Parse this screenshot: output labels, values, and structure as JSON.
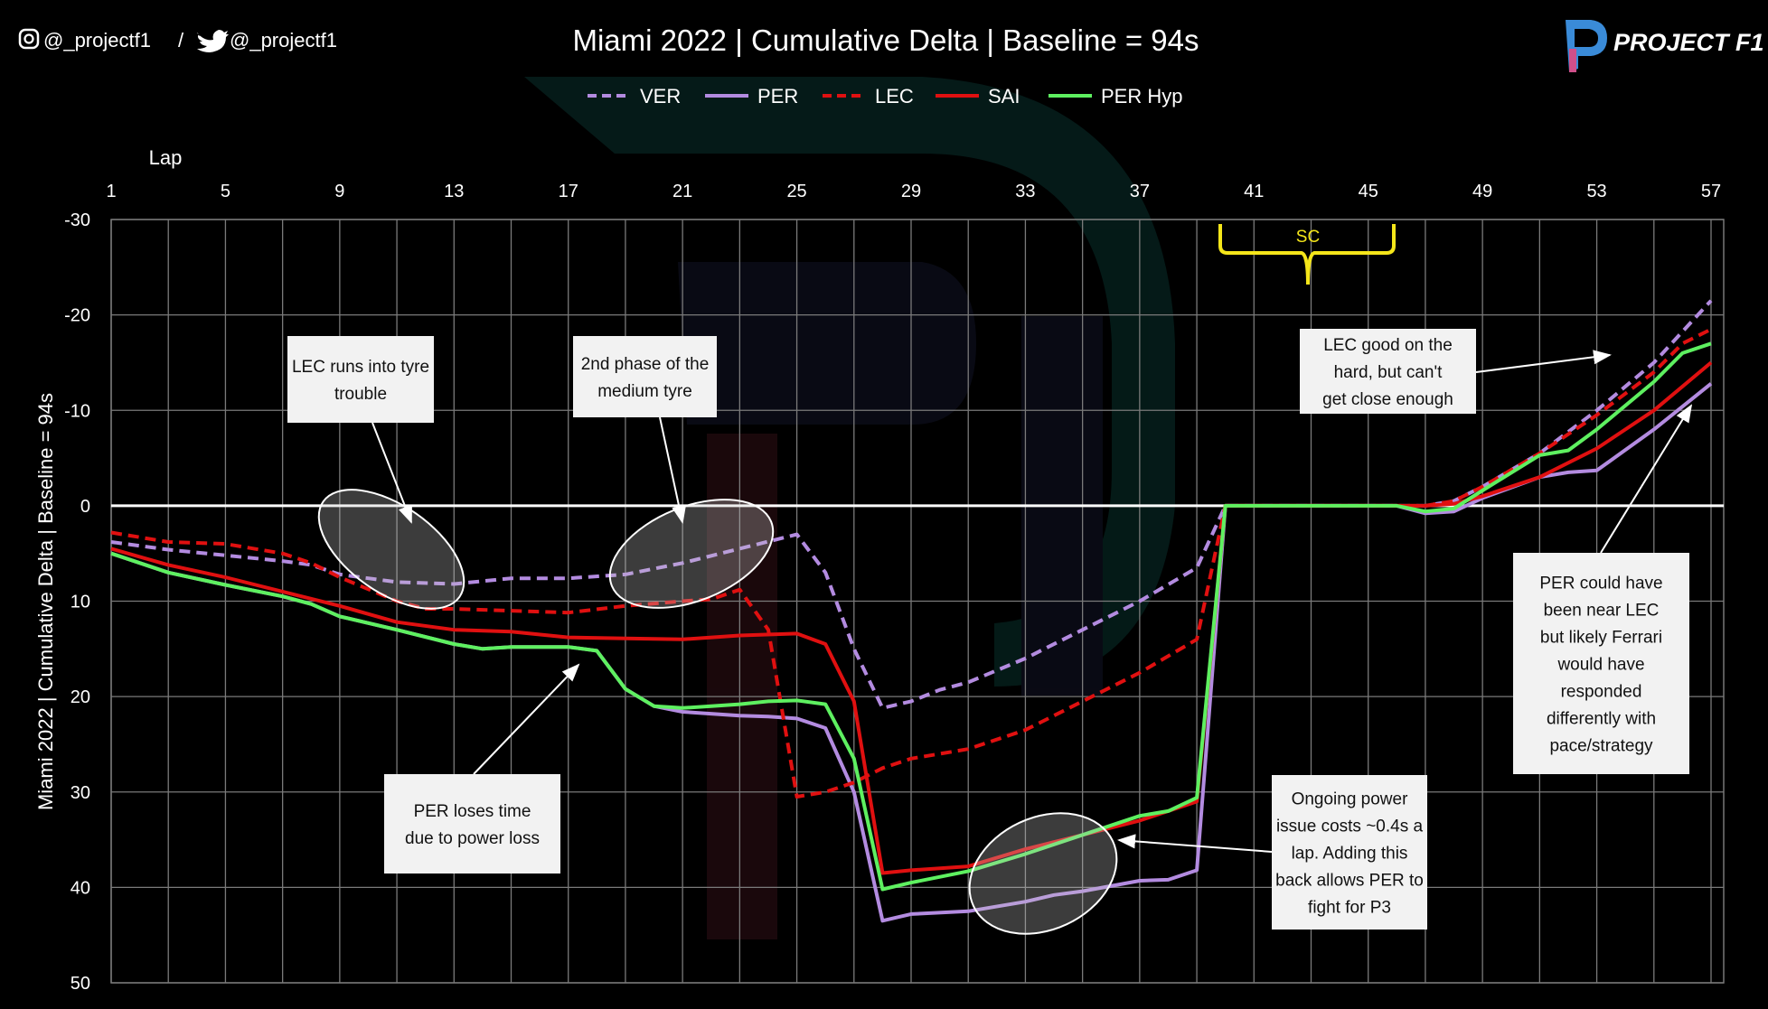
{
  "header": {
    "social": "@_projectf1 / @_projectf1",
    "instagram_handle": "@_projectf1",
    "twitter_handle": "@_projectf1",
    "logo_text": "PROJECT F1",
    "icons": [
      "instagram-icon",
      "twitter-icon",
      "project-f1-logo"
    ]
  },
  "chart_data": {
    "type": "line",
    "title": "Miami 2022 | Cumulative Delta | Baseline = 94s",
    "xlabel": "Lap",
    "ylabel": "Miami 2022 | Cumulative Delta | Baseline = 94s",
    "xlim": [
      1,
      57
    ],
    "ylim": [
      50,
      -30
    ],
    "y_inverted": true,
    "xticks": [
      1,
      5,
      9,
      13,
      17,
      21,
      25,
      29,
      33,
      37,
      41,
      45,
      49,
      53,
      57
    ],
    "yticks": [
      -30,
      -20,
      -10,
      0,
      10,
      20,
      30,
      40,
      50
    ],
    "grid": true,
    "legend_placement": "top",
    "series": [
      {
        "name": "VER",
        "color": "#b38be0",
        "dash": true,
        "x": [
          1,
          3,
          5,
          7,
          8,
          9,
          10,
          11,
          13,
          15,
          17,
          19,
          21,
          23,
          25,
          26,
          27,
          28,
          29,
          30,
          31,
          33,
          35,
          37,
          39,
          40,
          46,
          47,
          48,
          49,
          51,
          53,
          55,
          57
        ],
        "y": [
          3.8,
          4.6,
          5.2,
          5.8,
          6.2,
          7.2,
          7.6,
          8,
          8.2,
          7.6,
          7.6,
          7.2,
          6,
          4.5,
          3,
          7,
          15,
          21.2,
          20.5,
          19.3,
          18.5,
          16,
          13,
          10,
          6.5,
          0,
          0,
          0,
          -0.5,
          -2,
          -5.5,
          -10,
          -15,
          -21.5
        ]
      },
      {
        "name": "PER",
        "color": "#b38be0",
        "dash": false,
        "x": [
          1,
          3,
          5,
          7,
          8,
          9,
          11,
          13,
          14,
          15,
          17,
          18,
          19,
          20,
          21,
          23,
          24,
          25,
          26,
          27,
          28,
          29,
          31,
          33,
          34,
          35,
          37,
          38,
          39,
          40,
          46,
          47,
          48,
          49,
          51,
          52,
          53,
          55,
          57
        ],
        "y": [
          5,
          7,
          8.3,
          9.5,
          10.3,
          11.6,
          13,
          14.5,
          15,
          14.8,
          14.8,
          15.2,
          19.2,
          21,
          21.6,
          22,
          22.1,
          22.3,
          23.3,
          30,
          43.5,
          42.8,
          42.5,
          41.5,
          40.8,
          40.4,
          39.3,
          39.2,
          38.2,
          0,
          0,
          0.8,
          0.6,
          -0.8,
          -3,
          -3.5,
          -3.7,
          -8,
          -12.8
        ]
      },
      {
        "name": "LEC",
        "color": "#e01010",
        "dash": true,
        "x": [
          1,
          3,
          5,
          7,
          8,
          9,
          11,
          12,
          13,
          15,
          17,
          19,
          21,
          22,
          23,
          24,
          25,
          26,
          27,
          28,
          29,
          31,
          33,
          35,
          37,
          39,
          40,
          46,
          47,
          48,
          49,
          51,
          53,
          55,
          56,
          57
        ],
        "y": [
          2.8,
          3.8,
          4,
          5,
          6,
          7.5,
          10,
          10.8,
          10.8,
          11,
          11.2,
          10.5,
          10,
          9.8,
          8.8,
          13,
          30.5,
          30,
          29,
          27.5,
          26.5,
          25.5,
          23.5,
          20.5,
          17.5,
          14,
          0,
          0,
          0,
          -0.5,
          -2,
          -5.5,
          -9.5,
          -14,
          -17,
          -18.5
        ]
      },
      {
        "name": "SAI",
        "color": "#e01010",
        "dash": false,
        "x": [
          1,
          3,
          5,
          7,
          9,
          11,
          13,
          15,
          17,
          19,
          21,
          23,
          25,
          26,
          27,
          28,
          29,
          31,
          33,
          35,
          37,
          39,
          40,
          46,
          47,
          48,
          49,
          51,
          53,
          55,
          57
        ],
        "y": [
          4.5,
          6.2,
          7.5,
          9,
          10.5,
          12.2,
          13,
          13.2,
          13.8,
          13.9,
          14,
          13.6,
          13.4,
          14.5,
          20.5,
          38.5,
          38.2,
          37.8,
          36,
          34.5,
          33,
          31,
          0,
          0,
          0,
          -0.2,
          -1,
          -3,
          -6,
          -10,
          -15
        ]
      },
      {
        "name": "PER Hyp",
        "color": "#5ef060",
        "dash": false,
        "x": [
          1,
          3,
          5,
          7,
          8,
          9,
          11,
          13,
          14,
          15,
          17,
          18,
          19,
          20,
          21,
          22,
          23,
          24,
          25,
          26,
          27,
          28,
          29,
          31,
          33,
          35,
          37,
          38,
          39,
          40,
          46,
          47,
          48,
          49,
          51,
          52,
          53,
          55,
          56,
          57
        ],
        "y": [
          5,
          7,
          8.3,
          9.5,
          10.3,
          11.6,
          13,
          14.5,
          15,
          14.8,
          14.8,
          15.2,
          19.2,
          21,
          21.2,
          21,
          20.8,
          20.5,
          20.4,
          20.8,
          26.5,
          40.2,
          39.5,
          38.3,
          36.5,
          34.5,
          32.5,
          32,
          30.6,
          0,
          0,
          0.6,
          0.3,
          -1.6,
          -5.3,
          -5.8,
          -8,
          -13,
          -16,
          -17
        ]
      }
    ],
    "annotations": [
      {
        "id": "lec-tyre",
        "lines": [
          "LEC runs into tyre",
          "trouble"
        ]
      },
      {
        "id": "medium",
        "lines": [
          "2nd phase of the",
          "medium tyre"
        ]
      },
      {
        "id": "per-loss",
        "lines": [
          "PER loses time",
          "due to power loss"
        ]
      },
      {
        "id": "power-issue",
        "lines": [
          "Ongoing power",
          "issue costs ~0.4s a",
          "lap. Adding this",
          "back allows PER to",
          "fight for P3"
        ]
      },
      {
        "id": "lec-hard",
        "lines": [
          "LEC good on the",
          "hard, but can't",
          "get close enough"
        ]
      },
      {
        "id": "per-near",
        "lines": [
          "PER could have",
          "been near LEC",
          "but likely Ferrari",
          "would have",
          "responded",
          "differently with",
          "pace/strategy"
        ]
      }
    ],
    "sc_label": "SC",
    "sc_color": "#f5e61a"
  }
}
